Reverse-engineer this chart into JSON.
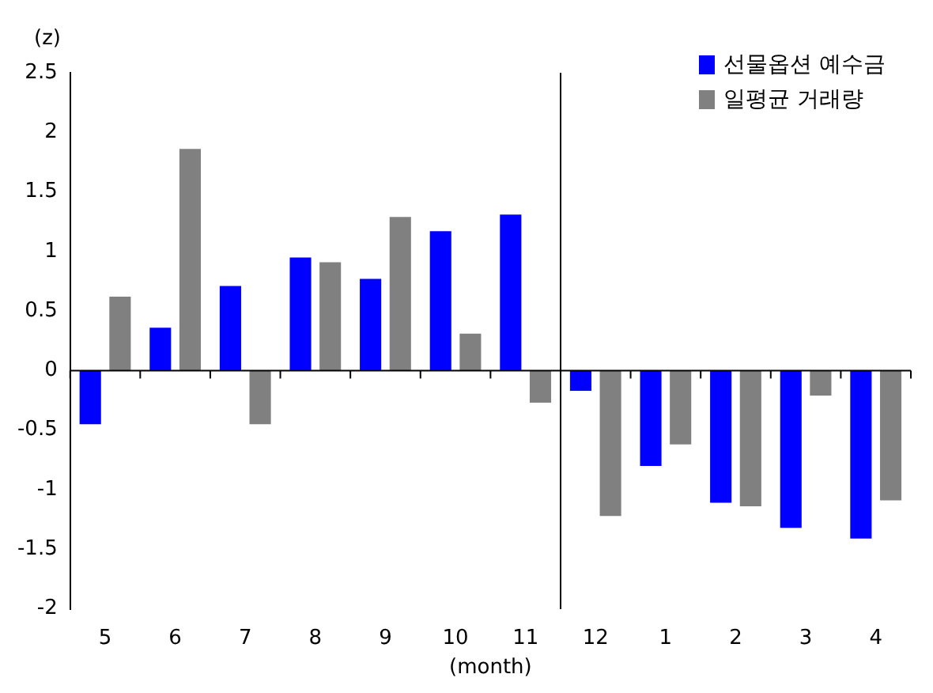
{
  "chart_data": {
    "type": "bar",
    "ylabel": "(z)",
    "xlabel": "(month)",
    "categories": [
      "5",
      "6",
      "7",
      "8",
      "9",
      "10",
      "11",
      "12",
      "1",
      "2",
      "3",
      "4"
    ],
    "series": [
      {
        "name": "선물옵션 예수금",
        "color": "#0000ff",
        "values": [
          -0.45,
          0.36,
          0.71,
          0.95,
          0.77,
          1.17,
          1.31,
          -0.17,
          -0.8,
          -1.11,
          -1.32,
          -1.41
        ]
      },
      {
        "name": "일평균 거래량",
        "color": "#808080",
        "values": [
          0.62,
          1.86,
          -0.45,
          0.91,
          1.29,
          0.31,
          -0.27,
          -1.22,
          -0.62,
          -1.14,
          -0.21,
          -1.09
        ]
      }
    ],
    "ylim": [
      -2,
      2.5
    ],
    "yticks": [
      -2,
      -1.5,
      -1,
      -0.5,
      0,
      0.5,
      1,
      1.5,
      2,
      2.5
    ],
    "legend": "top right"
  }
}
